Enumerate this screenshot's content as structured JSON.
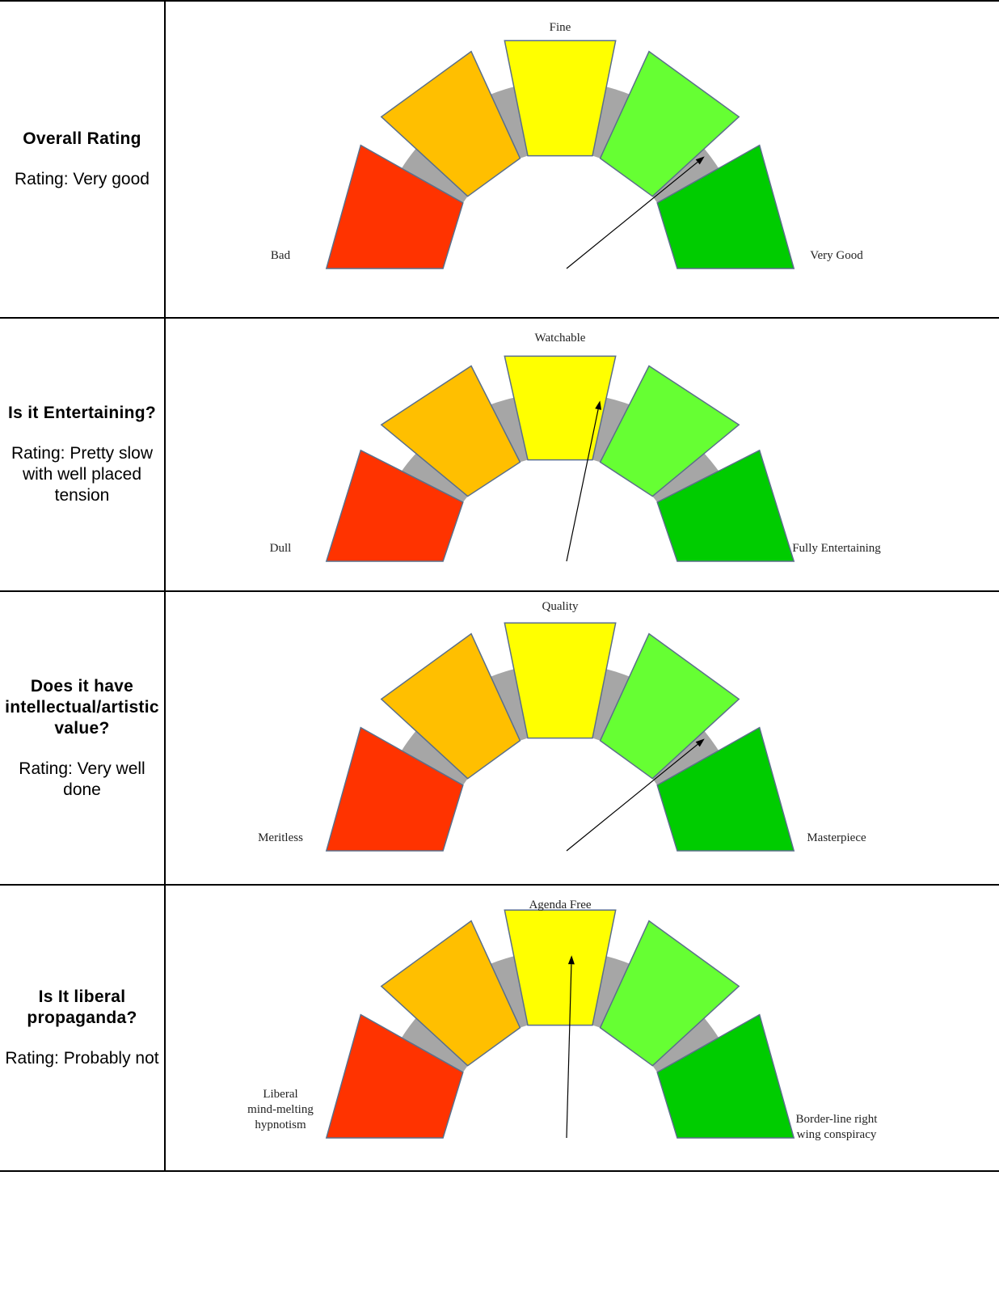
{
  "rows": [
    {
      "question": "Overall Rating",
      "rating": "Rating: Very good",
      "gauge": {
        "top_label": "Fine",
        "left_label": [
          "Bad"
        ],
        "right_label": [
          "Very Good"
        ],
        "pointer_value": 0.79
      }
    },
    {
      "question": "Is it Entertaining?",
      "rating": "Rating: Pretty slow with well placed tension",
      "gauge": {
        "top_label": "Watchable",
        "left_label": [
          "Dull"
        ],
        "right_label": [
          "Fully Entertaining"
        ],
        "pointer_value": 0.57
      }
    },
    {
      "question": "Does it have intellectual/artistic value?",
      "rating": "Rating: Very well done",
      "gauge": {
        "top_label": "Quality",
        "left_label": [
          "Meritless"
        ],
        "right_label": [
          "Masterpiece"
        ],
        "pointer_value": 0.79
      }
    },
    {
      "question": "Is It liberal propaganda?",
      "rating": "Rating: Probably not",
      "gauge": {
        "top_label": "Agenda Free",
        "left_label": [
          "Liberal",
          "mind-melting",
          "hypnotism"
        ],
        "right_label": [
          "Border-line right",
          "wing conspiracy"
        ],
        "pointer_value": 0.52
      }
    }
  ],
  "gauge_colors": [
    "#ff3300",
    "#ffbf00",
    "#ffff00",
    "#66ff33",
    "#00cc00"
  ],
  "gauge_track_color": "#a6a6a6",
  "pointer_color": "#000000"
}
